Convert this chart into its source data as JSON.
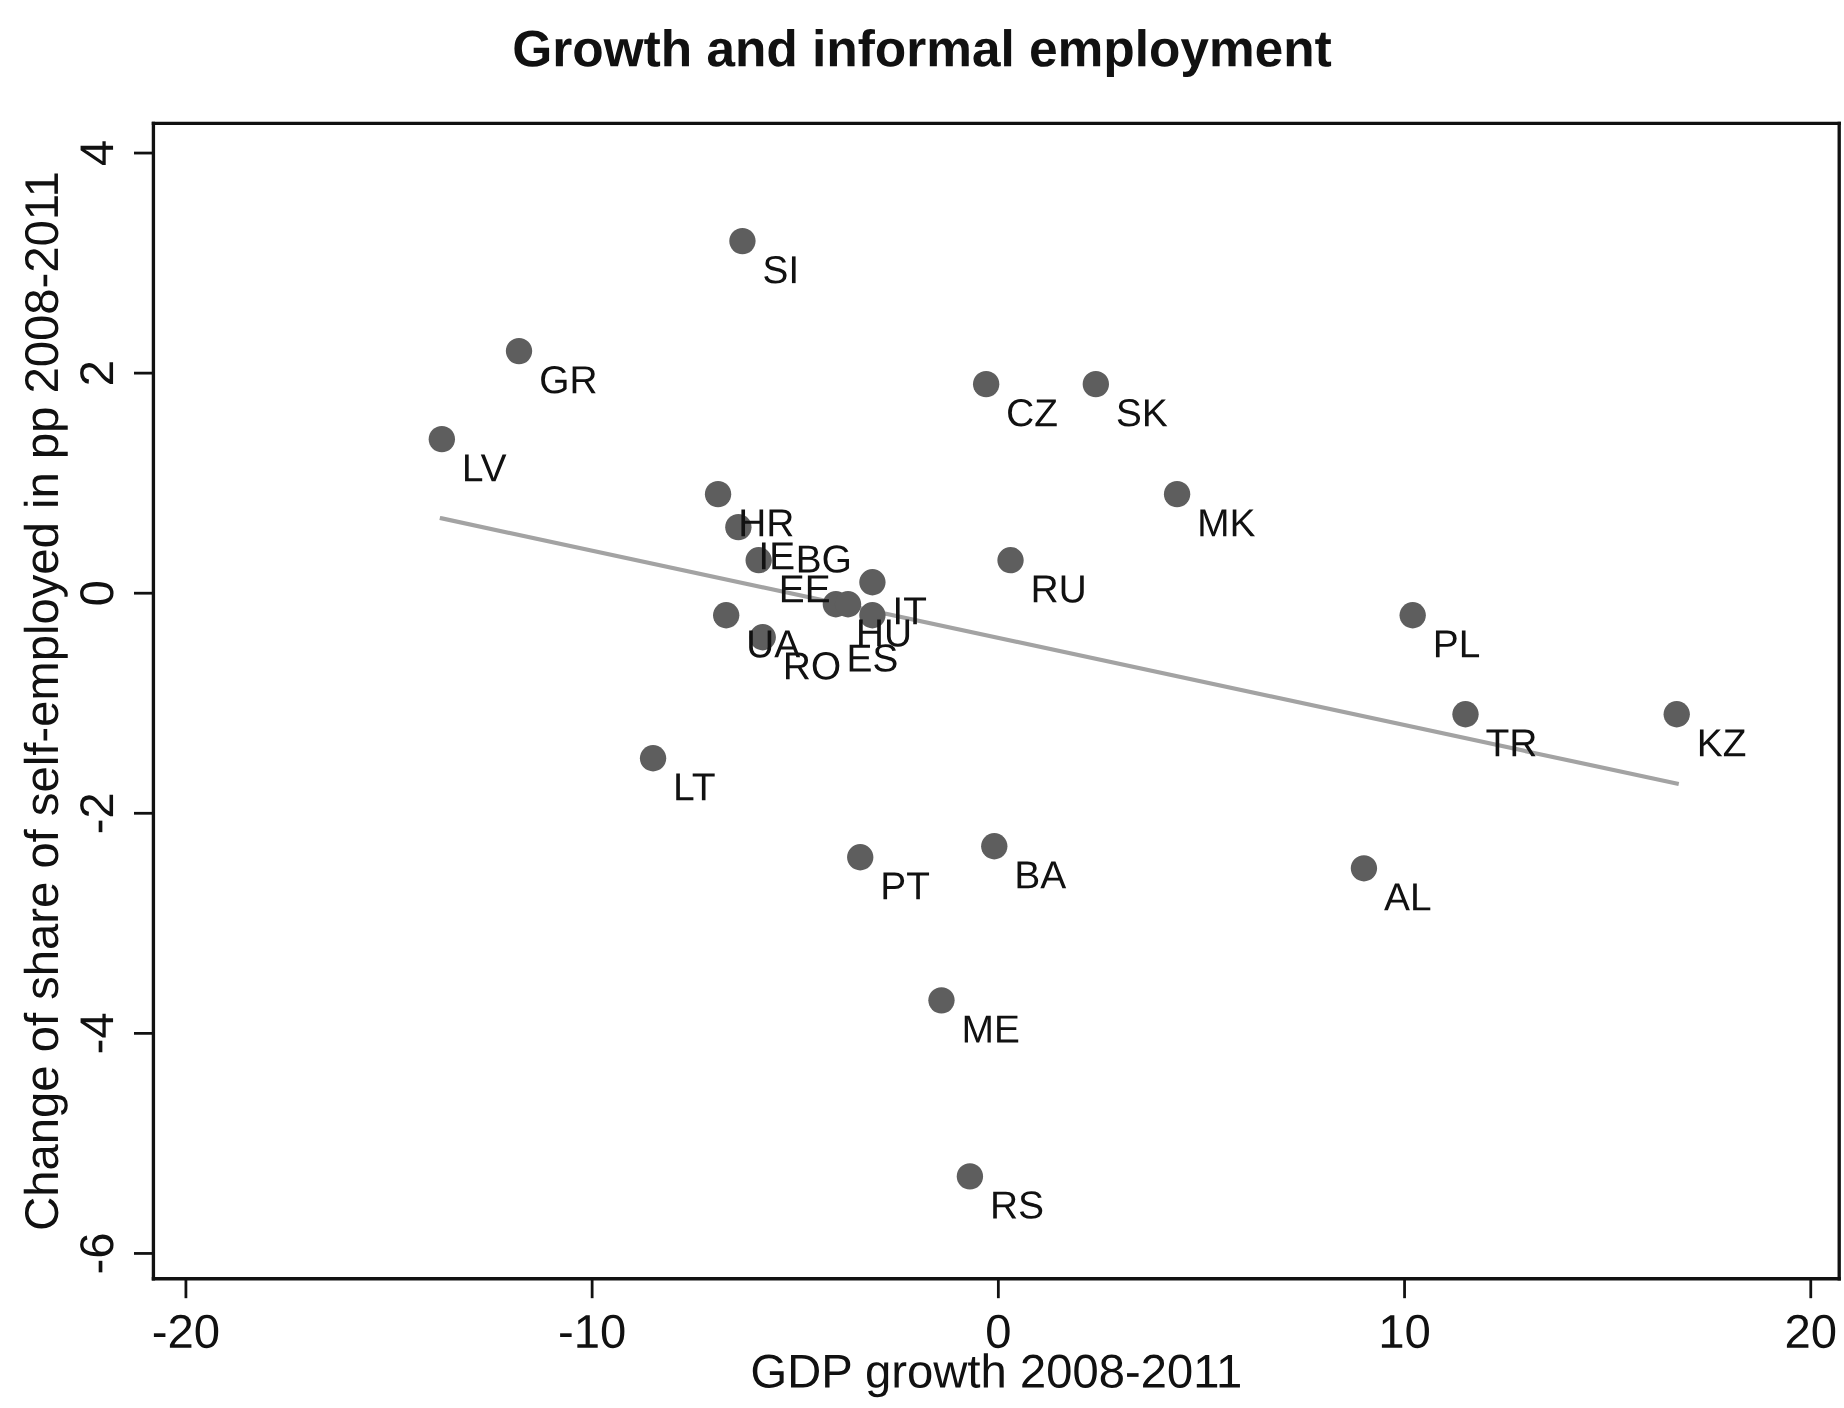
{
  "chart_data": {
    "type": "scatter",
    "title": "Growth and informal employment",
    "xlabel": "GDP growth 2008-2011",
    "ylabel": "Change of share of self-employed in pp 2008-2011",
    "series": [
      {
        "color": "#5e5e5e",
        "x": [
          -13.7,
          -11.8,
          -6.3,
          -0.3,
          2.4,
          4.4,
          -6.9,
          -6.4,
          -5.9,
          -6.7,
          -5.8,
          -4.0,
          -3.7,
          -3.1,
          -3.1,
          0.3,
          10.2,
          11.5,
          16.7,
          -8.5,
          -3.4,
          -0.1,
          9.0,
          -1.4,
          -0.7
        ],
        "values": [
          1.4,
          2.2,
          3.2,
          1.9,
          1.9,
          0.9,
          0.9,
          0.6,
          0.3,
          -0.2,
          -0.4,
          -0.1,
          -0.1,
          0.1,
          -0.2,
          0.3,
          -0.2,
          -1.1,
          -1.1,
          -1.5,
          -2.4,
          -2.3,
          -2.5,
          -3.7,
          -5.3
        ]
      },
      {
        "type": "line",
        "marker": "none",
        "color": "#a3a3a3",
        "x": [
          -13.7,
          16.7
        ],
        "values": [
          0.68,
          -1.73
        ]
      }
    ],
    "annotations": [
      {
        "text": "LV",
        "x": -13.7,
        "y": 1.4
      },
      {
        "text": "GR",
        "x": -11.8,
        "y": 2.2
      },
      {
        "text": "SI",
        "x": -6.3,
        "y": 3.2
      },
      {
        "text": "CZ",
        "x": -0.3,
        "y": 1.9
      },
      {
        "text": "SK",
        "x": 2.4,
        "y": 1.9
      },
      {
        "text": "MK",
        "x": 4.4,
        "y": 0.9
      },
      {
        "text": "HR",
        "x": -6.9,
        "y": 0.9
      },
      {
        "text": "IE",
        "x": -6.4,
        "y": 0.6
      },
      {
        "text": "EE",
        "x": -5.9,
        "y": 0.3
      },
      {
        "text": "UA",
        "x": -6.7,
        "y": -0.2
      },
      {
        "text": "RO",
        "x": -5.8,
        "y": -0.4
      },
      {
        "text": "HU",
        "x": -4.0,
        "y": -0.1
      },
      {
        "text": "BG",
        "x": -3.7,
        "y": -0.1
      },
      {
        "text": "IT",
        "x": -3.1,
        "y": 0.1
      },
      {
        "text": "ES",
        "x": -3.1,
        "y": -0.2
      },
      {
        "text": "RU",
        "x": 0.3,
        "y": 0.3
      },
      {
        "text": "PL",
        "x": 10.2,
        "y": -0.2
      },
      {
        "text": "TR",
        "x": 11.5,
        "y": -1.1
      },
      {
        "text": "KZ",
        "x": 16.7,
        "y": -1.1
      },
      {
        "text": "LT",
        "x": -8.5,
        "y": -1.5
      },
      {
        "text": "PT",
        "x": -3.4,
        "y": -2.4
      },
      {
        "text": "BA",
        "x": -0.1,
        "y": -2.3
      },
      {
        "text": "AL",
        "x": 9.0,
        "y": -2.5
      },
      {
        "text": "ME",
        "x": -1.4,
        "y": -3.7
      },
      {
        "text": "RS",
        "x": -0.7,
        "y": -5.3
      }
    ],
    "xlim": [
      -20.8,
      20.7
    ],
    "ylim": [
      -6.23,
      4.27
    ],
    "xticks": [
      -20,
      -10,
      0,
      10,
      20
    ],
    "yticks": [
      -6,
      -4,
      -2,
      0,
      2,
      4
    ],
    "marker": "circle",
    "line_style": "solid",
    "grid": false
  }
}
